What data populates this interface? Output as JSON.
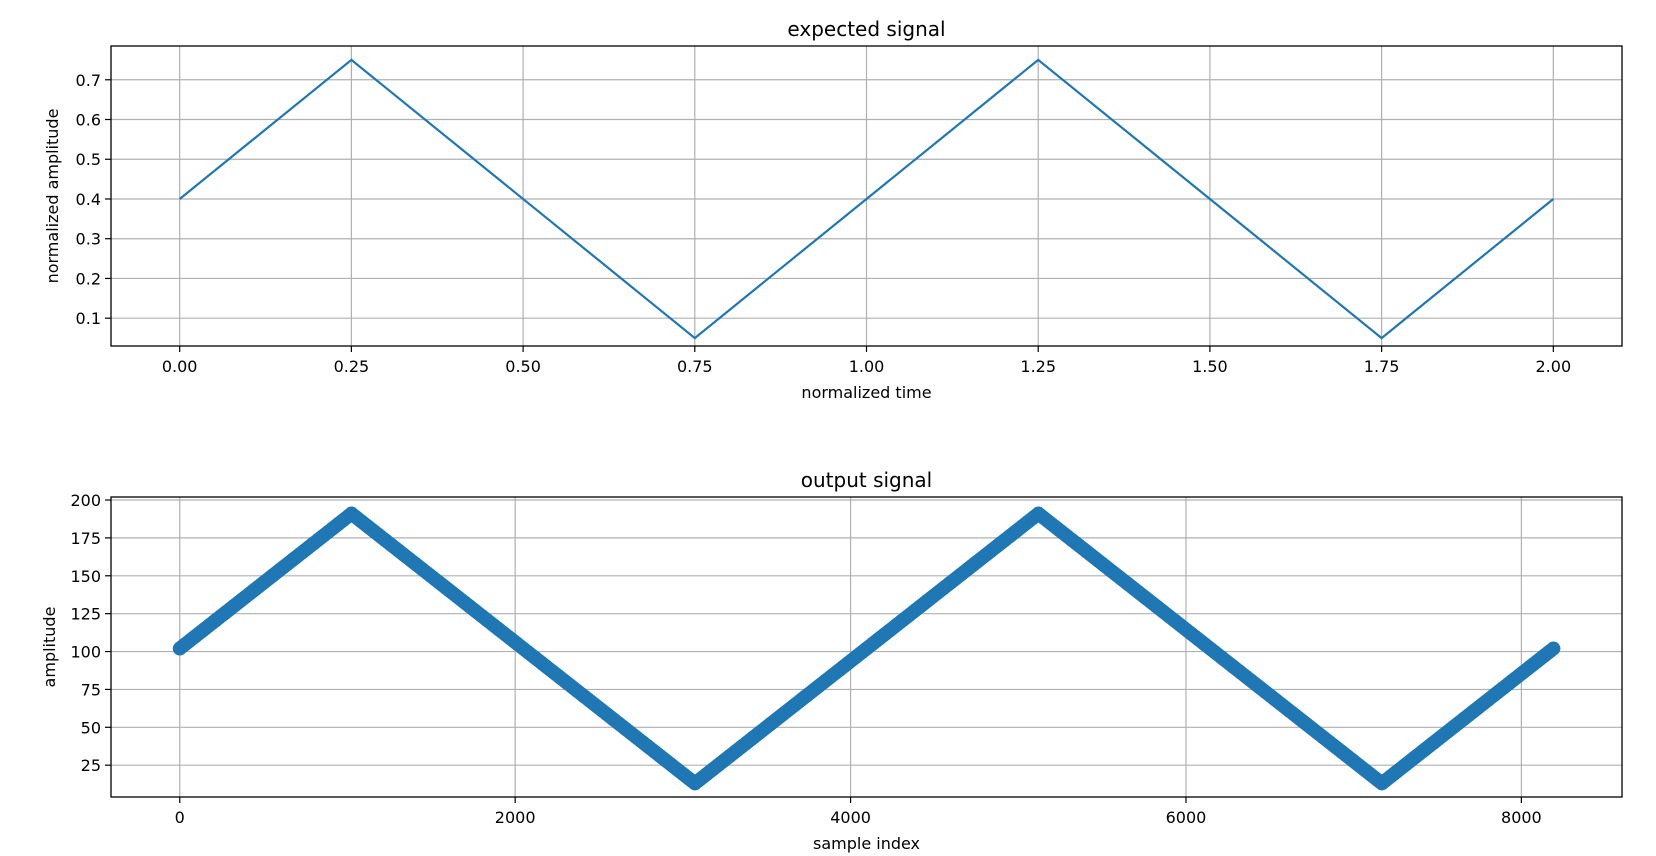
{
  "chart_data": [
    {
      "type": "line",
      "title": "expected signal",
      "xlabel": "normalized time",
      "ylabel": "normalized amplitude",
      "xlim": [
        -0.1,
        2.1
      ],
      "ylim": [
        0.03,
        0.785
      ],
      "grid": true,
      "xticks": [
        0.0,
        0.25,
        0.5,
        0.75,
        1.0,
        1.25,
        1.5,
        1.75,
        2.0
      ],
      "xtick_labels": [
        "0.00",
        "0.25",
        "0.50",
        "0.75",
        "1.00",
        "1.25",
        "1.50",
        "1.75",
        "2.00"
      ],
      "yticks": [
        0.1,
        0.2,
        0.3,
        0.4,
        0.5,
        0.6,
        0.7
      ],
      "ytick_labels": [
        "0.1",
        "0.2",
        "0.3",
        "0.4",
        "0.5",
        "0.6",
        "0.7"
      ],
      "color": "#1f77b4",
      "series": [
        {
          "x": [
            0.0,
            0.25,
            0.75,
            1.25,
            1.75,
            2.0
          ],
          "y": [
            0.4,
            0.75,
            0.05,
            0.75,
            0.05,
            0.4
          ]
        }
      ]
    },
    {
      "type": "scatter",
      "title": "output signal",
      "xlabel": "sample index",
      "ylabel": "amplitude",
      "xlim": [
        -410,
        8600
      ],
      "ylim": [
        4,
        202
      ],
      "grid": true,
      "xticks": [
        0,
        2000,
        4000,
        6000,
        8000
      ],
      "xtick_labels": [
        "0",
        "2000",
        "4000",
        "6000",
        "8000"
      ],
      "yticks": [
        25,
        50,
        75,
        100,
        125,
        150,
        175,
        200
      ],
      "ytick_labels": [
        "25",
        "50",
        "75",
        "100",
        "125",
        "150",
        "175",
        "200"
      ],
      "color": "#1f77b4",
      "series": [
        {
          "x": [
            0,
            1024,
            3072,
            5120,
            7168,
            8191
          ],
          "y": [
            102,
            191,
            13,
            191,
            13,
            102
          ]
        }
      ]
    }
  ]
}
